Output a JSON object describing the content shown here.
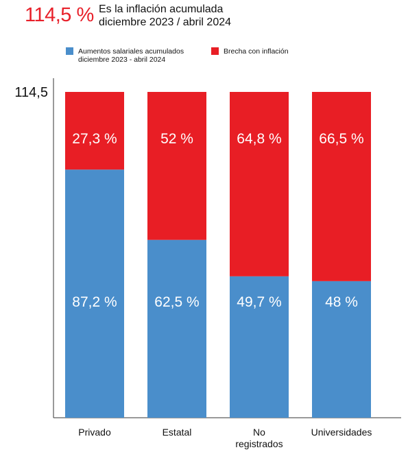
{
  "header": {
    "value": "114,5 %",
    "line1": "Es la inflación acumulada",
    "line2": "diciembre 2023 / abril 2024"
  },
  "colors": {
    "accent_red": "#e8202a",
    "blue": "#4a8ecb",
    "red": "#e81e25",
    "axis": "#333333"
  },
  "chart_data": {
    "type": "bar",
    "stacked": true,
    "categories": [
      "Privado",
      "Estatal",
      "No registrados",
      "Universidades"
    ],
    "category_lines": [
      [
        "Privado"
      ],
      [
        "Estatal"
      ],
      [
        "No",
        "registrados"
      ],
      [
        "Universidades"
      ]
    ],
    "ylim": [
      0,
      114.5
    ],
    "y_tick_label": "114,5",
    "y_tick_value": 114.5,
    "grid": false,
    "legend_placement": "top",
    "series": [
      {
        "name": "Aumentos salariales acumulados diciembre 2023 - abril 2024",
        "legend_lines": [
          "Aumentos salariales acumulados",
          "diciembre 2023 - abril 2024"
        ],
        "color": "#4a8ecb",
        "values": [
          87.2,
          62.5,
          49.7,
          48
        ],
        "labels": [
          "87,2 %",
          "62,5 %",
          "49,7 %",
          "48 %"
        ]
      },
      {
        "name": "Brecha con inflación",
        "legend_lines": [
          "Brecha con inflación"
        ],
        "color": "#e81e25",
        "values": [
          27.3,
          52,
          64.8,
          66.5
        ],
        "labels": [
          "27,3 %",
          "52 %",
          "64,8 %",
          "66,5 %"
        ]
      }
    ]
  }
}
